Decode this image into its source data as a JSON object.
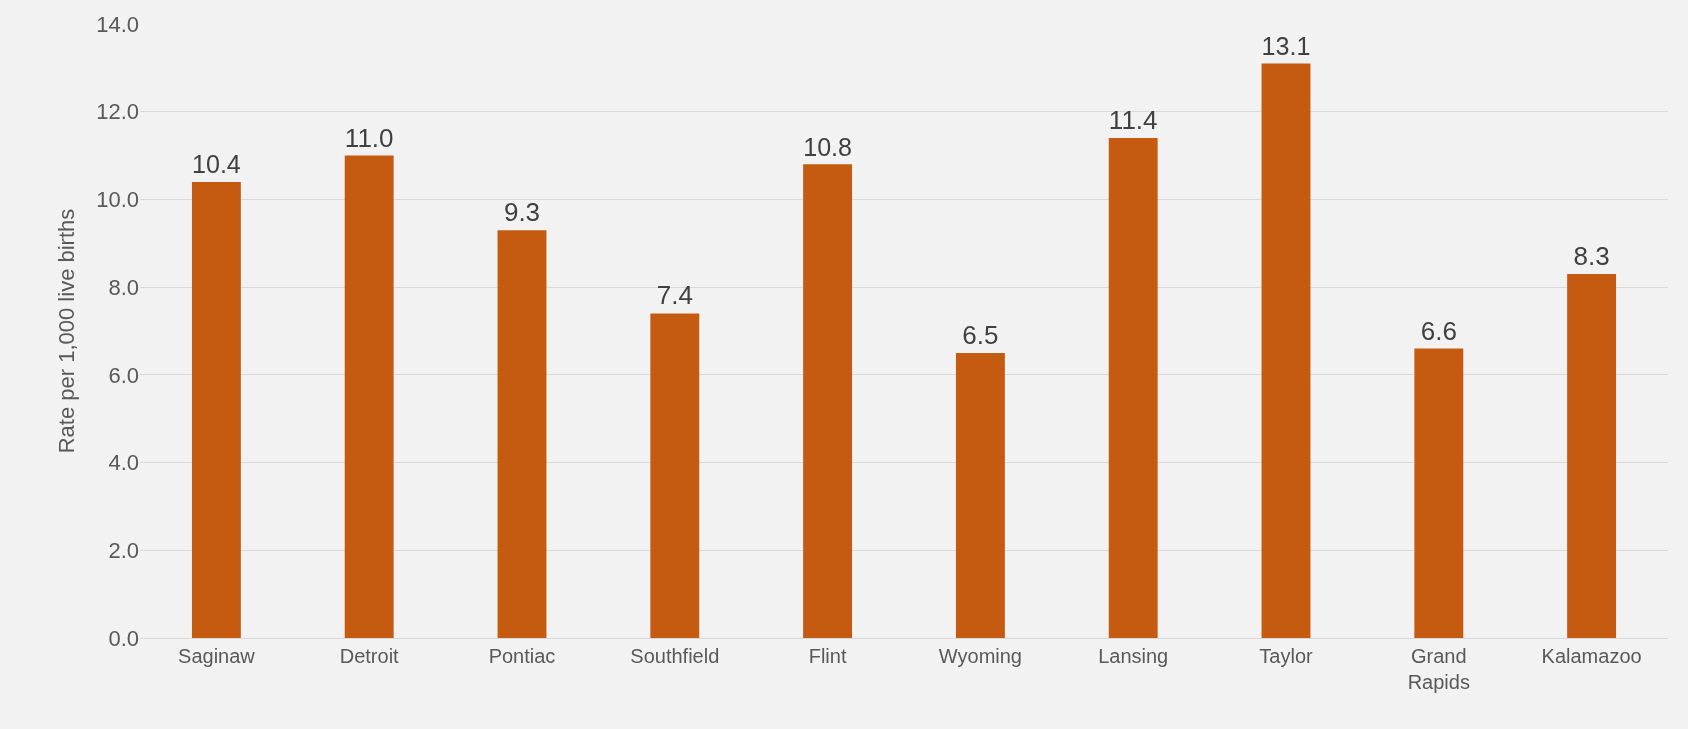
{
  "chart_data": {
    "type": "bar",
    "categories": [
      "Saginaw",
      "Detroit",
      "Pontiac",
      "Southfield",
      "Flint",
      "Wyoming",
      "Lansing",
      "Taylor",
      "Grand Rapids",
      "Kalamazoo"
    ],
    "values": [
      10.4,
      11.0,
      9.3,
      7.4,
      10.8,
      6.5,
      11.4,
      13.1,
      6.6,
      8.3
    ],
    "value_labels": [
      "10.4",
      "11.0",
      "9.3",
      "7.4",
      "10.8",
      "6.5",
      "11.4",
      "13.1",
      "6.6",
      "8.3"
    ],
    "color": "#c55a11",
    "ylabel": "Rate per 1,000 live births",
    "ylim": [
      0,
      14
    ],
    "yticks": [
      {
        "value": 0,
        "label": "0.0"
      },
      {
        "value": 2,
        "label": "2.0"
      },
      {
        "value": 4,
        "label": "4.0"
      },
      {
        "value": 6,
        "label": "6.0"
      },
      {
        "value": 8,
        "label": "8.0"
      },
      {
        "value": 10,
        "label": "10.0"
      },
      {
        "value": 12,
        "label": "12.0"
      },
      {
        "value": 14,
        "label": "14.0"
      }
    ],
    "grid": "y"
  }
}
